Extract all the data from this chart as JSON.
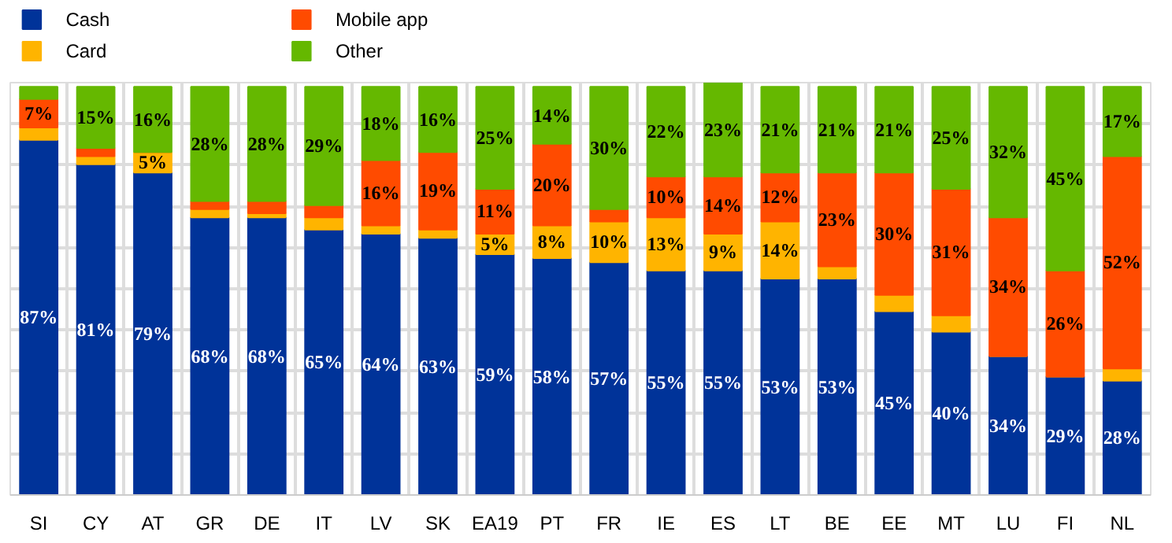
{
  "chart_data": {
    "type": "bar",
    "stacked": true,
    "tick_labels": "x",
    "grid": true,
    "legend": "top left",
    "categories": [
      "SI",
      "CY",
      "AT",
      "GR",
      "DE",
      "IT",
      "LV",
      "SK",
      "EA19",
      "PT",
      "FR",
      "IE",
      "ES",
      "LT",
      "BE",
      "EE",
      "MT",
      "LU",
      "FI",
      "NL"
    ],
    "series": [
      {
        "name": "Cash",
        "color": "#003399",
        "values": [
          87,
          81,
          79,
          68,
          68,
          65,
          64,
          63,
          59,
          58,
          57,
          55,
          55,
          53,
          53,
          45,
          40,
          34,
          29,
          28
        ],
        "value_labels": [
          "87%",
          "81%",
          "79%",
          "68%",
          "68%",
          "65%",
          "64%",
          "63%",
          "59%",
          "58%",
          "57%",
          "55%",
          "55%",
          "53%",
          "53%",
          "45%",
          "40%",
          "34%",
          "29%",
          "28%"
        ]
      },
      {
        "name": "Card",
        "color": "#ffb400",
        "values": [
          3,
          2,
          5,
          2,
          1,
          3,
          2,
          2,
          5,
          8,
          10,
          13,
          9,
          14,
          3,
          4,
          4,
          0,
          0,
          3
        ],
        "value_labels": [
          null,
          null,
          "5%",
          null,
          null,
          null,
          null,
          null,
          "5%",
          "8%",
          "10%",
          "13%",
          "9%",
          "14%",
          null,
          null,
          null,
          null,
          null,
          null
        ]
      },
      {
        "name": "Mobile app",
        "color": "#ff4b00",
        "values": [
          7,
          2,
          0,
          2,
          3,
          3,
          16,
          19,
          11,
          20,
          3,
          10,
          14,
          12,
          23,
          30,
          31,
          34,
          26,
          52
        ],
        "value_labels": [
          "7%",
          null,
          null,
          null,
          null,
          null,
          "16%",
          "19%",
          "11%",
          "20%",
          null,
          "10%",
          "14%",
          "12%",
          "23%",
          "30%",
          "31%",
          "34%",
          "26%",
          "52%"
        ]
      },
      {
        "name": "Other",
        "color": "#65b800",
        "values": [
          3,
          15,
          16,
          28,
          28,
          29,
          18,
          16,
          25,
          14,
          30,
          22,
          23,
          21,
          21,
          21,
          25,
          32,
          45,
          17
        ],
        "value_labels": [
          null,
          "15%",
          "16%",
          "28%",
          "28%",
          "29%",
          "18%",
          "16%",
          "25%",
          "14%",
          "30%",
          "22%",
          "23%",
          "21%",
          "21%",
          "21%",
          "25%",
          "32%",
          "45%",
          "17%"
        ]
      }
    ]
  }
}
